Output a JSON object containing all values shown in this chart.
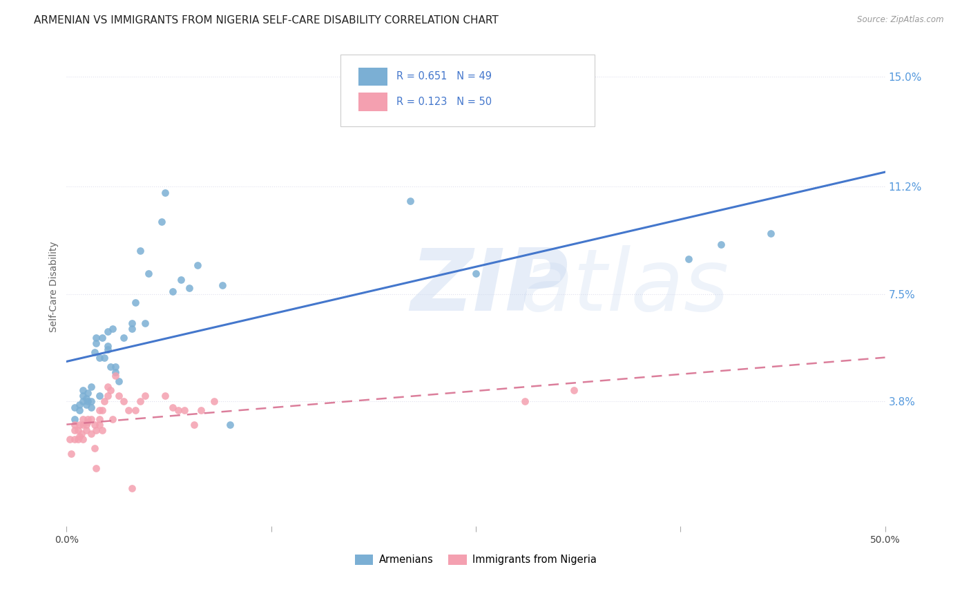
{
  "title": "ARMENIAN VS IMMIGRANTS FROM NIGERIA SELF-CARE DISABILITY CORRELATION CHART",
  "source": "Source: ZipAtlas.com",
  "ylabel": "Self-Care Disability",
  "ytick_labels": [
    "3.8%",
    "7.5%",
    "11.2%",
    "15.0%"
  ],
  "ytick_values": [
    0.038,
    0.075,
    0.112,
    0.15
  ],
  "xlim": [
    0.0,
    0.5
  ],
  "ylim": [
    -0.005,
    0.16
  ],
  "r1": "0.651",
  "n1": "49",
  "r2": "0.123",
  "n2": "50",
  "legend_label1": "Armenians",
  "legend_label2": "Immigrants from Nigeria",
  "color_armenian": "#7bafd4",
  "color_nigeria": "#f4a0b0",
  "color_line_armenian": "#4477cc",
  "color_line_nigeria": "#d87090",
  "armenian_x": [
    0.005,
    0.005,
    0.008,
    0.008,
    0.01,
    0.01,
    0.01,
    0.012,
    0.012,
    0.013,
    0.013,
    0.015,
    0.015,
    0.015,
    0.017,
    0.018,
    0.018,
    0.02,
    0.02,
    0.022,
    0.023,
    0.025,
    0.025,
    0.025,
    0.027,
    0.028,
    0.03,
    0.03,
    0.032,
    0.035,
    0.04,
    0.04,
    0.042,
    0.045,
    0.048,
    0.05,
    0.058,
    0.06,
    0.065,
    0.07,
    0.075,
    0.08,
    0.095,
    0.1,
    0.21,
    0.25,
    0.38,
    0.4,
    0.43
  ],
  "armenian_y": [
    0.032,
    0.036,
    0.035,
    0.037,
    0.038,
    0.04,
    0.042,
    0.037,
    0.039,
    0.038,
    0.041,
    0.036,
    0.038,
    0.043,
    0.055,
    0.058,
    0.06,
    0.04,
    0.053,
    0.06,
    0.053,
    0.056,
    0.057,
    0.062,
    0.05,
    0.063,
    0.048,
    0.05,
    0.045,
    0.06,
    0.063,
    0.065,
    0.072,
    0.09,
    0.065,
    0.082,
    0.1,
    0.11,
    0.076,
    0.08,
    0.077,
    0.085,
    0.078,
    0.03,
    0.107,
    0.082,
    0.087,
    0.092,
    0.096
  ],
  "nigeria_x": [
    0.002,
    0.003,
    0.005,
    0.005,
    0.005,
    0.007,
    0.007,
    0.008,
    0.008,
    0.009,
    0.01,
    0.01,
    0.01,
    0.012,
    0.012,
    0.013,
    0.013,
    0.015,
    0.015,
    0.017,
    0.017,
    0.018,
    0.018,
    0.02,
    0.02,
    0.02,
    0.022,
    0.022,
    0.023,
    0.025,
    0.025,
    0.027,
    0.028,
    0.03,
    0.032,
    0.035,
    0.038,
    0.04,
    0.042,
    0.045,
    0.048,
    0.06,
    0.065,
    0.068,
    0.072,
    0.078,
    0.082,
    0.09,
    0.28,
    0.31
  ],
  "nigeria_y": [
    0.025,
    0.02,
    0.025,
    0.028,
    0.03,
    0.025,
    0.028,
    0.026,
    0.03,
    0.027,
    0.025,
    0.03,
    0.032,
    0.028,
    0.03,
    0.031,
    0.032,
    0.027,
    0.032,
    0.03,
    0.022,
    0.015,
    0.028,
    0.03,
    0.032,
    0.035,
    0.028,
    0.035,
    0.038,
    0.04,
    0.043,
    0.042,
    0.032,
    0.047,
    0.04,
    0.038,
    0.035,
    0.008,
    0.035,
    0.038,
    0.04,
    0.04,
    0.036,
    0.035,
    0.035,
    0.03,
    0.035,
    0.038,
    0.038,
    0.042
  ],
  "background_color": "#ffffff",
  "grid_color": "#e0e0ee",
  "title_fontsize": 11,
  "axis_fontsize": 10,
  "tick_fontsize": 10
}
